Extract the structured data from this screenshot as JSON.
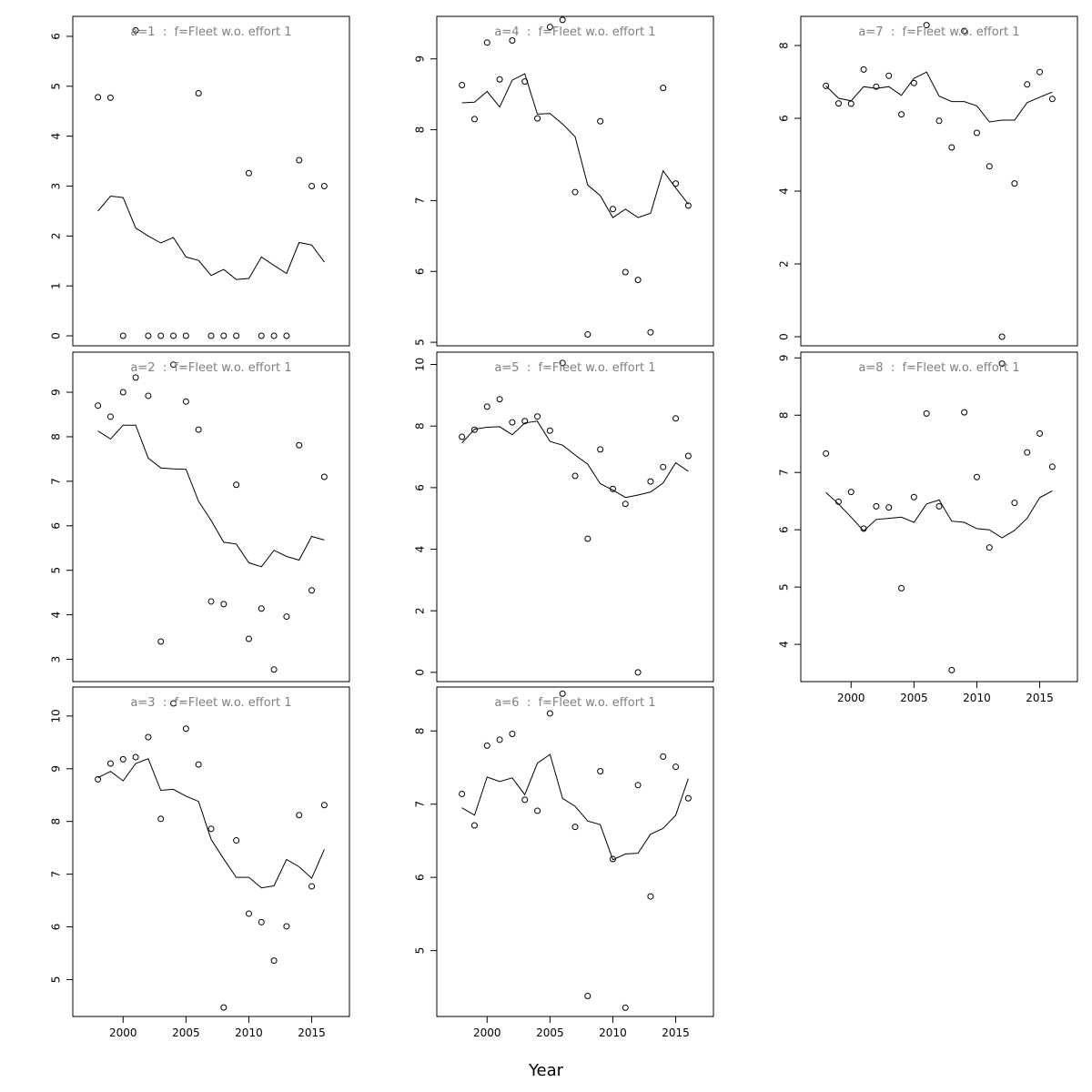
{
  "figure": {
    "xlabel": "Year"
  },
  "chart_data": [
    {
      "type": "scatter+line",
      "title": "a=1  :  f=Fleet w.o. effort 1",
      "x": [
        1998,
        1999,
        2000,
        2001,
        2002,
        2003,
        2004,
        2005,
        2006,
        2007,
        2008,
        2009,
        2010,
        2011,
        2012,
        2013,
        2014,
        2015,
        2016
      ],
      "observed": [
        4.78,
        4.77,
        0,
        6.12,
        0,
        0,
        0,
        0,
        4.86,
        0,
        0,
        0,
        3.26,
        0,
        0,
        0,
        3.52,
        3.0,
        3.0
      ],
      "fitted": [
        2.5,
        2.8,
        2.77,
        2.16,
        2.0,
        1.86,
        1.97,
        1.58,
        1.51,
        1.21,
        1.33,
        1.13,
        1.15,
        1.58,
        1.41,
        1.25,
        1.87,
        1.82,
        1.48
      ],
      "xlim": [
        1996,
        2018
      ],
      "ylim": [
        -0.2,
        6.4
      ],
      "yticks": [
        0,
        1,
        2,
        3,
        4,
        5,
        6
      ],
      "xticks": [
        2000,
        2005,
        2010,
        2015
      ],
      "show_xticks": false
    },
    {
      "type": "scatter+line",
      "title": "a=2  :  f=Fleet w.o. effort 1",
      "x": [
        1998,
        1999,
        2000,
        2001,
        2002,
        2003,
        2004,
        2005,
        2006,
        2007,
        2008,
        2009,
        2010,
        2011,
        2012,
        2013,
        2014,
        2015,
        2016
      ],
      "observed": [
        8.7,
        8.45,
        9.0,
        9.33,
        8.92,
        3.4,
        9.62,
        8.79,
        8.16,
        4.3,
        4.24,
        6.92,
        3.46,
        4.14,
        2.77,
        3.96,
        7.81,
        4.55,
        7.1
      ],
      "fitted": [
        8.13,
        7.95,
        8.26,
        8.26,
        7.52,
        7.3,
        7.28,
        7.27,
        6.55,
        6.12,
        5.63,
        5.59,
        5.17,
        5.08,
        5.45,
        5.31,
        5.23,
        5.76,
        5.68
      ],
      "xlim": [
        1996,
        2018
      ],
      "ylim": [
        2.5,
        9.9
      ],
      "yticks": [
        3,
        4,
        5,
        6,
        7,
        8,
        9
      ],
      "xticks": [
        2000,
        2005,
        2010,
        2015
      ],
      "show_xticks": false
    },
    {
      "type": "scatter+line",
      "title": "a=3  :  f=Fleet w.o. effort 1",
      "x": [
        1998,
        1999,
        2000,
        2001,
        2002,
        2003,
        2004,
        2005,
        2006,
        2007,
        2008,
        2009,
        2010,
        2011,
        2012,
        2013,
        2014,
        2015,
        2016
      ],
      "observed": [
        8.8,
        9.1,
        9.18,
        9.22,
        9.6,
        8.05,
        10.24,
        9.76,
        9.08,
        7.86,
        4.47,
        7.64,
        6.25,
        6.09,
        5.36,
        6.01,
        8.12,
        6.77,
        8.31
      ],
      "fitted": [
        8.83,
        8.95,
        8.77,
        9.1,
        9.19,
        8.59,
        8.61,
        8.48,
        8.38,
        7.66,
        7.29,
        6.94,
        6.94,
        6.74,
        6.78,
        7.28,
        7.14,
        6.92,
        7.47
      ],
      "xlim": [
        1996,
        2018
      ],
      "ylim": [
        4.3,
        10.55
      ],
      "yticks": [
        5,
        6,
        7,
        8,
        9,
        10
      ],
      "xticks": [
        2000,
        2005,
        2010,
        2015
      ],
      "show_xticks": true
    },
    {
      "type": "scatter+line",
      "title": "a=4  :  f=Fleet w.o. effort 1",
      "x": [
        1998,
        1999,
        2000,
        2001,
        2002,
        2003,
        2004,
        2005,
        2006,
        2007,
        2008,
        2009,
        2010,
        2011,
        2012,
        2013,
        2014,
        2015,
        2016
      ],
      "observed": [
        8.63,
        8.15,
        9.23,
        8.71,
        9.26,
        8.68,
        8.16,
        9.45,
        9.55,
        7.12,
        5.11,
        8.12,
        6.88,
        5.99,
        5.88,
        5.14,
        8.59,
        7.24,
        6.93
      ],
      "fitted": [
        8.38,
        8.39,
        8.54,
        8.32,
        8.7,
        8.79,
        8.22,
        8.23,
        8.08,
        7.9,
        7.22,
        7.07,
        6.76,
        6.88,
        6.76,
        6.82,
        7.42,
        7.18,
        6.95
      ],
      "xlim": [
        1996,
        2018
      ],
      "ylim": [
        4.95,
        9.6
      ],
      "yticks": [
        5,
        6,
        7,
        8,
        9
      ],
      "xticks": [
        2000,
        2005,
        2010,
        2015
      ],
      "show_xticks": false
    },
    {
      "type": "scatter+line",
      "title": "a=5  :  f=Fleet w.o. effort 1",
      "x": [
        1998,
        1999,
        2000,
        2001,
        2002,
        2003,
        2004,
        2005,
        2006,
        2007,
        2008,
        2009,
        2010,
        2011,
        2012,
        2013,
        2014,
        2015,
        2016
      ],
      "observed": [
        7.65,
        7.88,
        8.63,
        8.87,
        8.12,
        8.16,
        8.31,
        7.85,
        10.05,
        6.38,
        4.34,
        7.24,
        5.96,
        5.47,
        0,
        6.2,
        6.67,
        8.25,
        7.03
      ],
      "fitted": [
        7.45,
        7.9,
        7.96,
        7.98,
        7.72,
        8.1,
        8.16,
        7.5,
        7.38,
        7.06,
        6.76,
        6.13,
        5.92,
        5.68,
        5.76,
        5.86,
        6.15,
        6.81,
        6.53
      ],
      "xlim": [
        1996,
        2018
      ],
      "ylim": [
        -0.3,
        10.4
      ],
      "yticks": [
        0,
        2,
        4,
        6,
        8,
        10
      ],
      "xticks": [
        2000,
        2005,
        2010,
        2015
      ],
      "show_xticks": false
    },
    {
      "type": "scatter+line",
      "title": "a=6  :  f=Fleet w.o. effort 1",
      "x": [
        1998,
        1999,
        2000,
        2001,
        2002,
        2003,
        2004,
        2005,
        2006,
        2007,
        2008,
        2009,
        2010,
        2011,
        2012,
        2013,
        2014,
        2015,
        2016
      ],
      "observed": [
        7.14,
        6.71,
        7.8,
        7.88,
        7.96,
        7.06,
        6.91,
        8.24,
        8.51,
        6.69,
        4.38,
        7.45,
        6.25,
        4.22,
        7.26,
        5.74,
        7.65,
        7.51,
        7.08
      ],
      "fitted": [
        6.95,
        6.85,
        7.37,
        7.31,
        7.36,
        7.13,
        7.56,
        7.68,
        7.08,
        6.97,
        6.77,
        6.72,
        6.24,
        6.32,
        6.33,
        6.59,
        6.67,
        6.85,
        7.35
      ],
      "xlim": [
        1996,
        2018
      ],
      "ylim": [
        4.1,
        8.6
      ],
      "yticks": [
        5,
        6,
        7,
        8
      ],
      "xticks": [
        2000,
        2005,
        2010,
        2015
      ],
      "show_xticks": true
    },
    {
      "type": "scatter+line",
      "title": "a=7  :  f=Fleet w.o. effort 1",
      "x": [
        1998,
        1999,
        2000,
        2001,
        2002,
        2003,
        2004,
        2005,
        2006,
        2007,
        2008,
        2009,
        2010,
        2011,
        2012,
        2013,
        2014,
        2015,
        2016
      ],
      "observed": [
        6.89,
        6.41,
        6.4,
        7.34,
        6.87,
        7.17,
        6.11,
        6.97,
        8.56,
        5.93,
        5.2,
        8.4,
        5.6,
        4.68,
        0,
        4.21,
        6.93,
        7.27,
        6.53
      ],
      "fitted": [
        6.89,
        6.55,
        6.48,
        6.87,
        6.82,
        6.87,
        6.63,
        7.1,
        7.27,
        6.61,
        6.46,
        6.46,
        6.34,
        5.9,
        5.95,
        5.95,
        6.43,
        6.58,
        6.72
      ],
      "xlim": [
        1996,
        2018
      ],
      "ylim": [
        -0.25,
        8.8
      ],
      "yticks": [
        0,
        2,
        4,
        6,
        8
      ],
      "xticks": [
        2000,
        2005,
        2010,
        2015
      ],
      "show_xticks": false
    },
    {
      "type": "scatter+line",
      "title": "a=8  :  f=Fleet w.o. effort 1",
      "x": [
        1998,
        1999,
        2000,
        2001,
        2002,
        2003,
        2004,
        2005,
        2006,
        2007,
        2008,
        2009,
        2010,
        2011,
        2012,
        2013,
        2014,
        2015,
        2016
      ],
      "observed": [
        7.33,
        6.49,
        6.66,
        6.02,
        6.41,
        6.39,
        4.98,
        6.57,
        8.03,
        6.41,
        3.55,
        8.05,
        6.92,
        5.69,
        8.9,
        6.47,
        7.35,
        7.68,
        7.1
      ],
      "fitted": [
        6.65,
        6.45,
        6.22,
        5.98,
        6.18,
        6.2,
        6.22,
        6.13,
        6.45,
        6.52,
        6.15,
        6.13,
        6.02,
        6.0,
        5.86,
        5.99,
        6.2,
        6.56,
        6.68
      ],
      "xlim": [
        1996,
        2018
      ],
      "ylim": [
        3.35,
        9.1
      ],
      "yticks": [
        4,
        5,
        6,
        7,
        8,
        9
      ],
      "xticks": [
        2000,
        2005,
        2010,
        2015
      ],
      "show_xticks": true
    }
  ]
}
